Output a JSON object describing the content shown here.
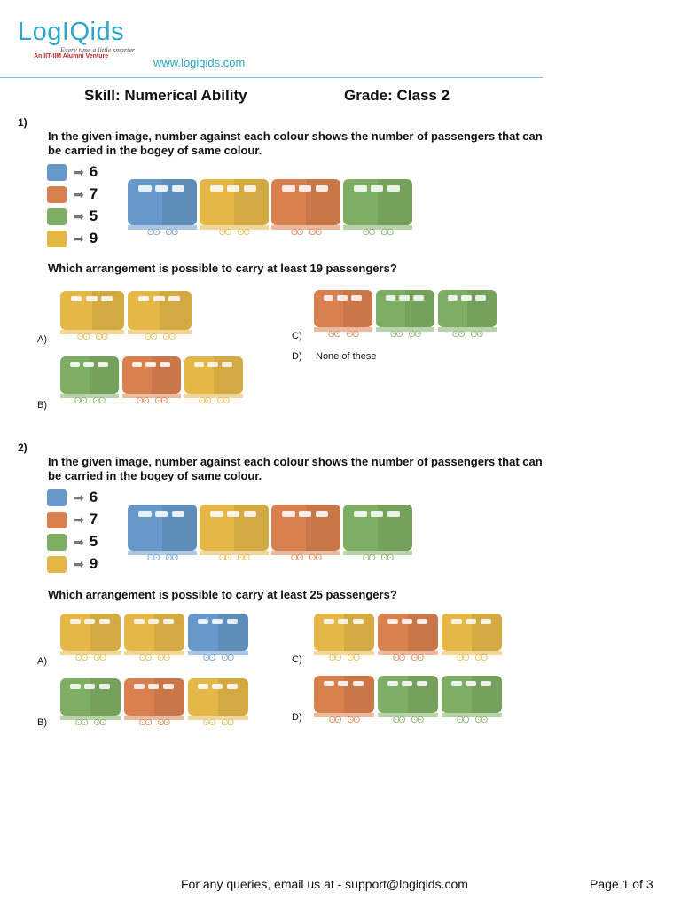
{
  "colors": {
    "blue": "#6698c9",
    "orange": "#d9804f",
    "green": "#7eae63",
    "yellow": "#e4b746",
    "brand": "#2aa7c9"
  },
  "header": {
    "logo": "LogIQids",
    "tagline": "Every time a little smarter",
    "venture": "An IIT-IIM Alumni Venture",
    "url": "www.logiqids.com",
    "skill": "Skill: Numerical Ability",
    "grade": "Grade: Class 2"
  },
  "legend": [
    {
      "color": "blue",
      "value": "6"
    },
    {
      "color": "orange",
      "value": "7"
    },
    {
      "color": "green",
      "value": "5"
    },
    {
      "color": "yellow",
      "value": "9"
    }
  ],
  "q1": {
    "number": "1)",
    "intro": "In the given image, number against each colour shows the number of passengers that can be carried in the bogey of same colour.",
    "train": [
      "blue",
      "yellow",
      "orange",
      "green"
    ],
    "question": "Which arrangement is possible to carry at least 19 passengers?",
    "options": {
      "A": {
        "label": "A)",
        "cars": [
          "yellow",
          "yellow"
        ]
      },
      "B": {
        "label": "B)",
        "cars": [
          "green",
          "orange",
          "yellow"
        ]
      },
      "C": {
        "label": "C)",
        "cars": [
          "orange",
          "green",
          "green"
        ]
      },
      "D": {
        "label": "D)",
        "text": "None of these"
      }
    }
  },
  "q2": {
    "number": "2)",
    "intro": "In the given image, number against each colour shows the number of passengers that can be carried in the bogey of same colour.",
    "train": [
      "blue",
      "yellow",
      "orange",
      "green"
    ],
    "question": "Which arrangement is possible to carry at least 25 passengers?",
    "options": {
      "A": {
        "label": "A)",
        "cars": [
          "yellow",
          "yellow",
          "blue"
        ]
      },
      "B": {
        "label": "B)",
        "cars": [
          "green",
          "orange",
          "yellow"
        ]
      },
      "C": {
        "label": "C)",
        "cars": [
          "yellow",
          "orange",
          "yellow"
        ]
      },
      "D": {
        "label": "D)",
        "cars": [
          "orange",
          "green",
          "green"
        ]
      }
    }
  },
  "footer": {
    "contact": "For any queries, email us at - support@logiqids.com",
    "page": "Page 1 of 3"
  }
}
